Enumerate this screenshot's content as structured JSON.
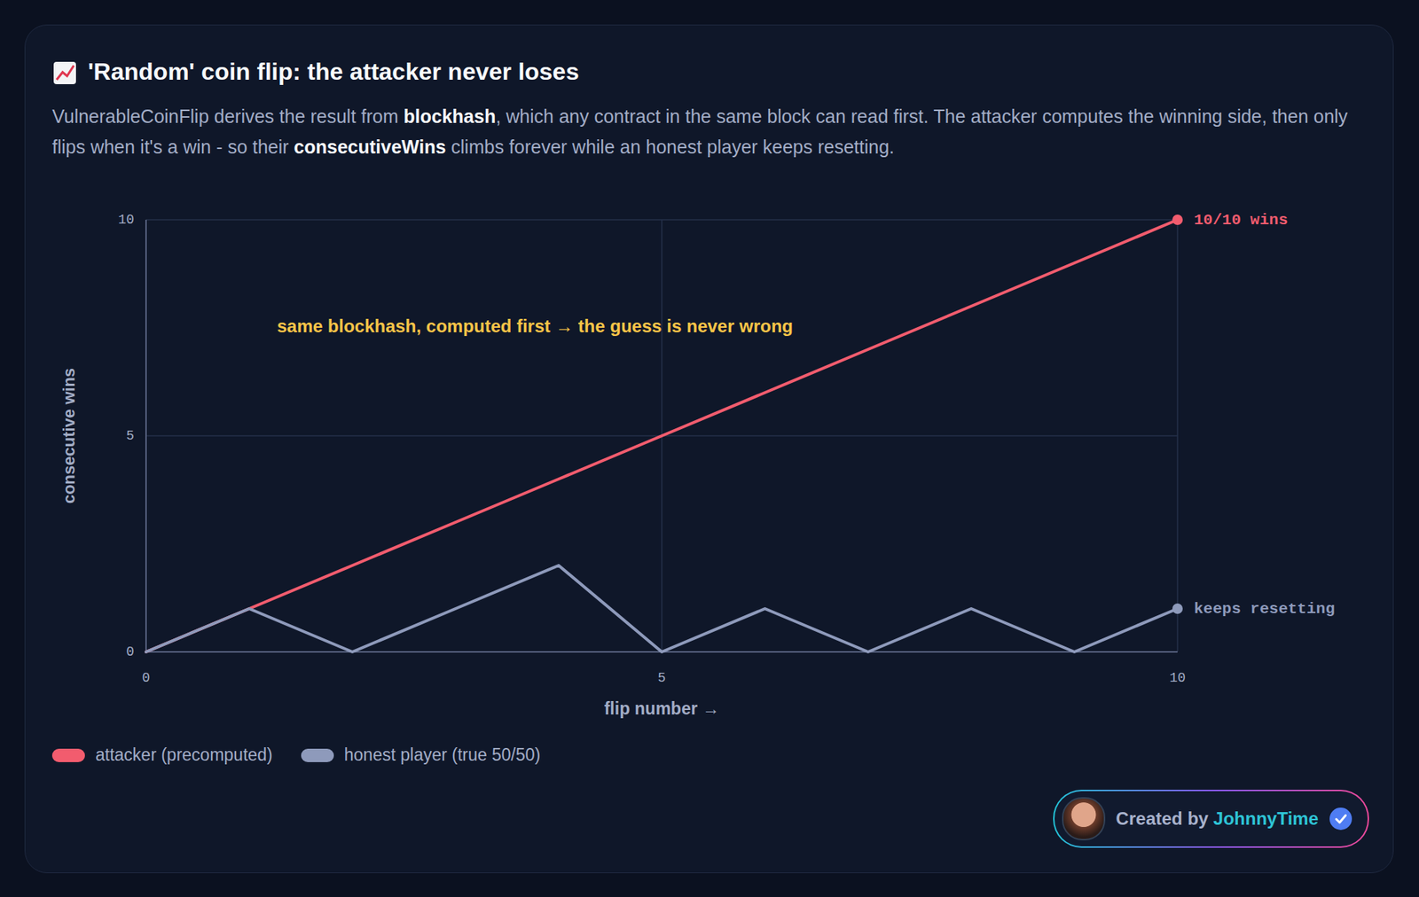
{
  "chart_data": {
    "type": "line",
    "title": "'Random' coin flip: the attacker never loses",
    "subtitle": [
      "VulnerableCoinFlip derives the result from ",
      "blockhash",
      ", which any contract in the same block can read first. The attacker computes the winning side, then only flips when it's a win - so their ",
      "consecutiveWins",
      " climbs forever while an honest player keeps resetting."
    ],
    "x": [
      0,
      1,
      2,
      3,
      4,
      5,
      6,
      7,
      8,
      9,
      10
    ],
    "xlim": [
      0,
      10
    ],
    "xticks": [
      0,
      5,
      10
    ],
    "ylim": [
      0,
      10
    ],
    "yticks": [
      0,
      5,
      10
    ],
    "x_label": "flip number →",
    "y_label": "consecutive wins",
    "grid": true,
    "legend": "bottom-left",
    "series": [
      {
        "name": "attacker (precomputed)",
        "color": "#f25c6e",
        "values": [
          0,
          1,
          2,
          3,
          4,
          5,
          6,
          7,
          8,
          9,
          10
        ],
        "end_label": "10/10 wins"
      },
      {
        "name": "honest player (true 50/50)",
        "color": "#8e9abb",
        "values": [
          0,
          1,
          0,
          1,
          2,
          0,
          1,
          0,
          1,
          0,
          1
        ],
        "end_label": "keeps resetting"
      }
    ],
    "annotations": [
      {
        "text": "same blockhash, computed first → the guess is never wrong",
        "x": 1.27,
        "y": 7.55
      }
    ],
    "credit": {
      "prefix": "Created by",
      "name": "JohnnyTime"
    }
  }
}
